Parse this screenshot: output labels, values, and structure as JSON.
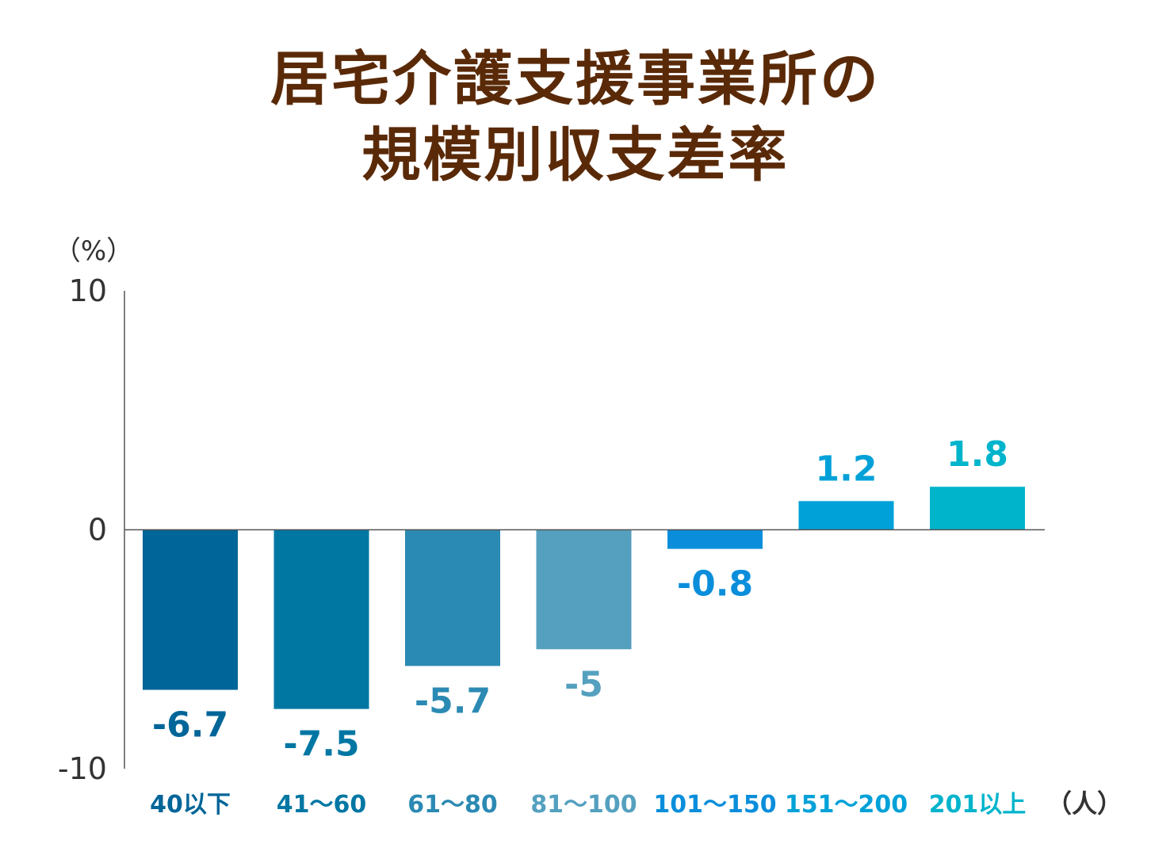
{
  "title": {
    "line1": "居宅介護支援事業所の",
    "line2": "規模別収支差率"
  },
  "chart_data": {
    "type": "bar",
    "ylabel": "（%）",
    "xunit": "（人）",
    "ylim": [
      -10,
      10
    ],
    "yticks": [
      "10",
      "0",
      "-10"
    ],
    "ytick_values": [
      10,
      0,
      -10
    ],
    "categories": [
      "40以下",
      "41〜60",
      "61〜80",
      "81〜100",
      "101〜150",
      "151〜200",
      "201以上"
    ],
    "values": [
      -6.7,
      -7.5,
      -5.7,
      -5,
      -0.8,
      1.2,
      1.8
    ],
    "value_labels": [
      "-6.7",
      "-7.5",
      "-5.7",
      "-5",
      "-0.8",
      "1.2",
      "1.8"
    ],
    "colors": [
      "#006598",
      "#0077a3",
      "#2b8ab3",
      "#55a0bf",
      "#0a8edb",
      "#00a1d8",
      "#00b4cc"
    ]
  }
}
